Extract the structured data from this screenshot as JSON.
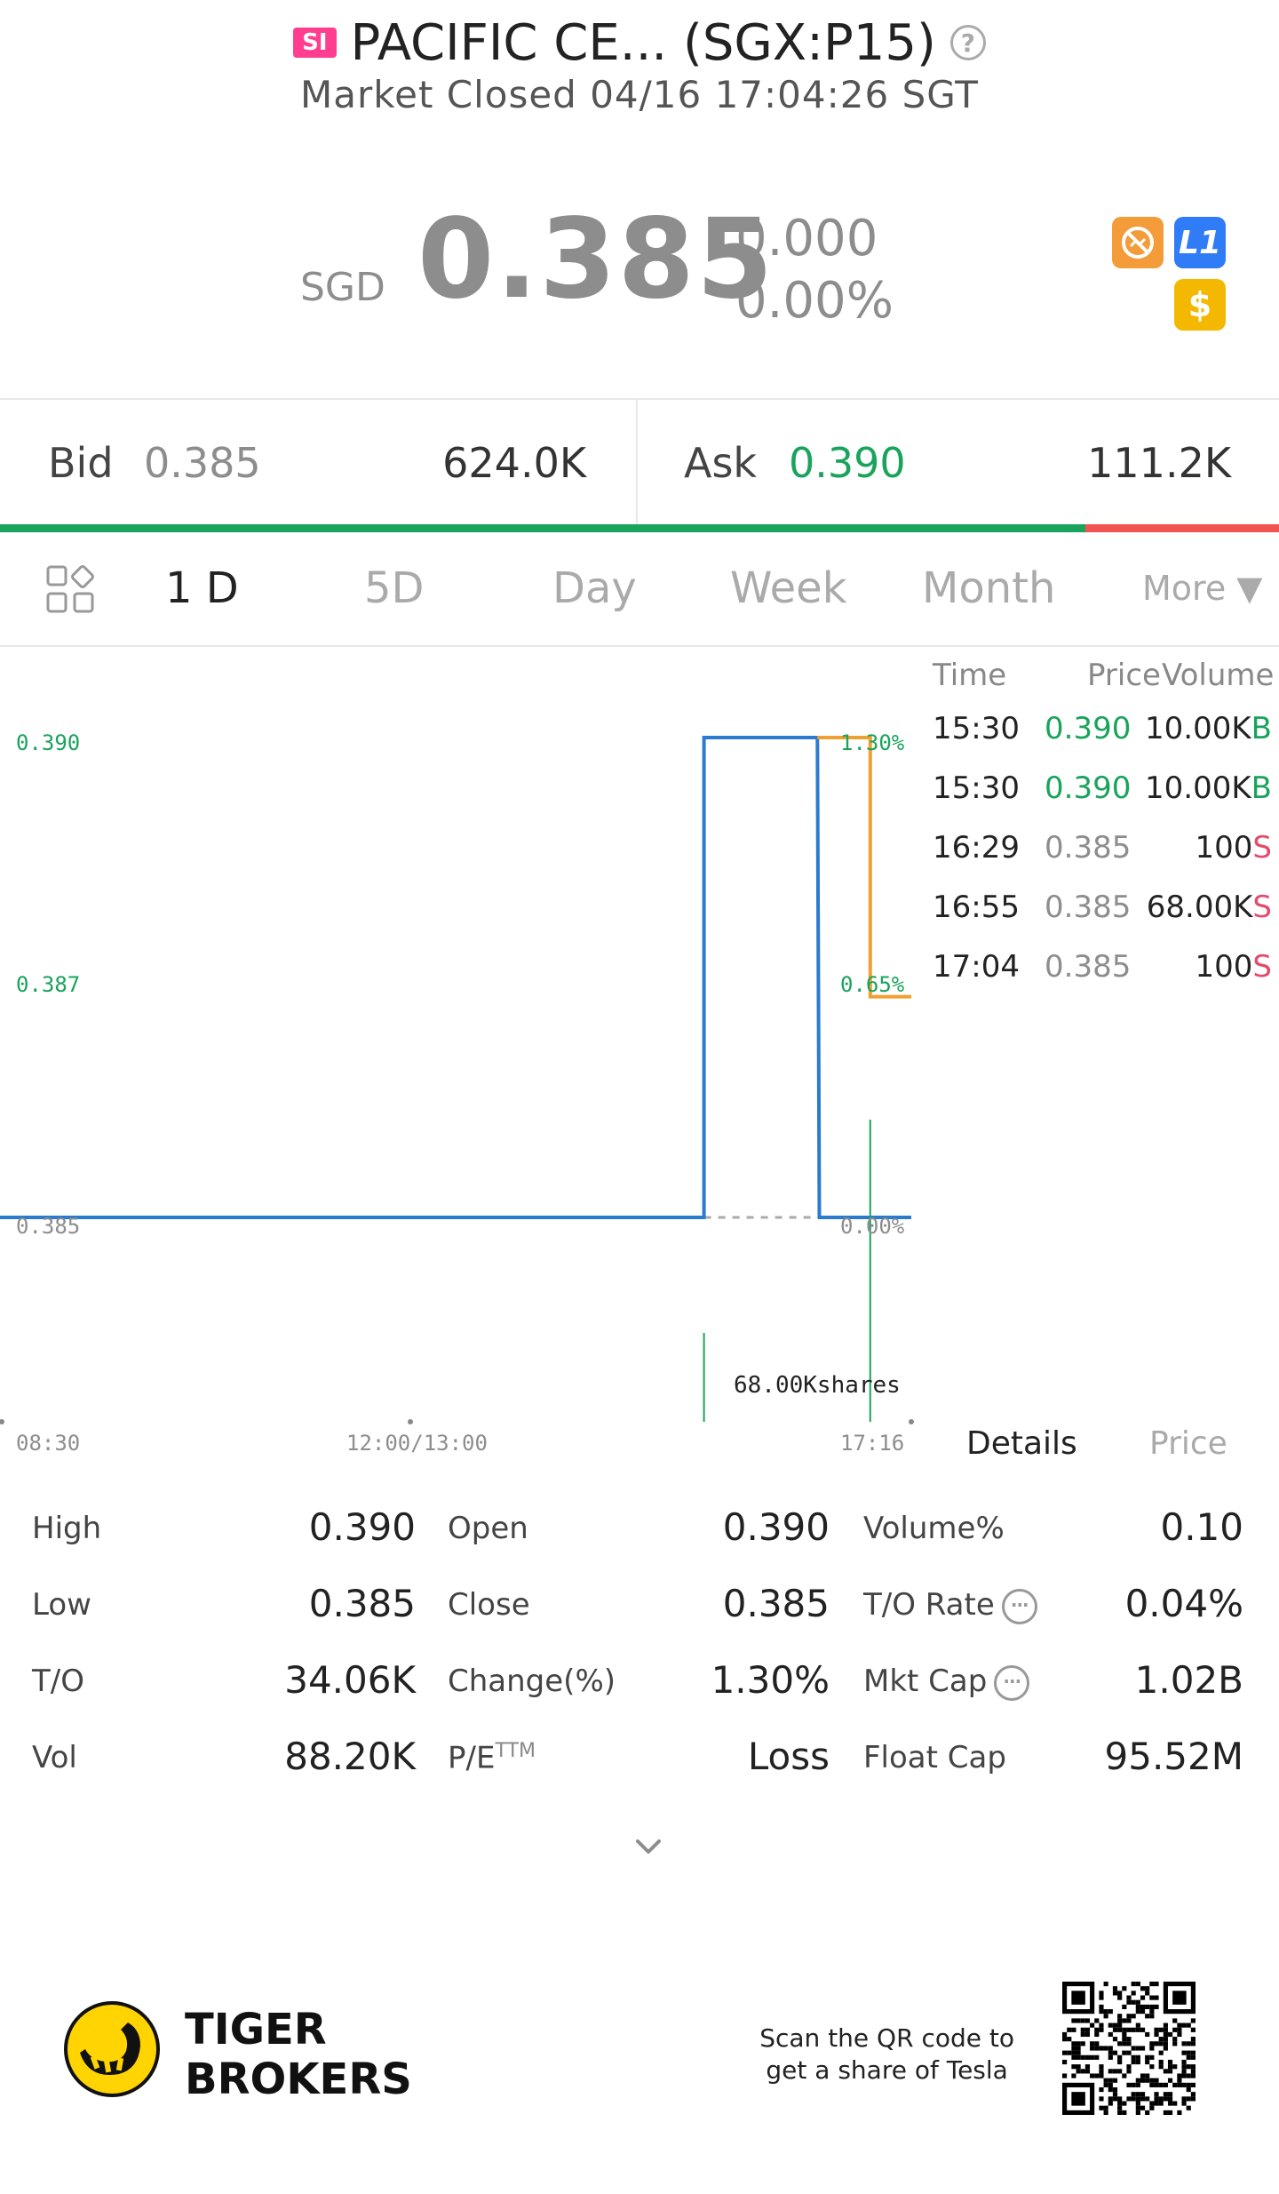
{
  "header": {
    "badge": "SI",
    "title": "PACIFIC CE... (SGX:P15)",
    "status": "Market Closed 04/16 17:04:26 SGT"
  },
  "quote": {
    "currency": "SGD",
    "price": "0.385",
    "change": "0.000",
    "change_pct": "0.00%",
    "icon_names": [
      "no-short-icon",
      "level1-icon",
      "dollar-icon"
    ],
    "l1_label": "L1",
    "dollar_label": "$"
  },
  "bidask": {
    "bid_label": "Bid",
    "bid_price": "0.385",
    "bid_size": "624.0K",
    "ask_label": "Ask",
    "ask_price": "0.390",
    "ask_size": "111.2K",
    "bid_share": 0.849
  },
  "tabs": {
    "items": [
      "1 D",
      "5D",
      "Day",
      "Week",
      "Month"
    ],
    "more": "More ▼",
    "active_index": 0
  },
  "chart_data": {
    "type": "line",
    "y_labels_left": [
      "0.390",
      "0.387",
      "0.385"
    ],
    "y_labels_right": [
      "1.30%",
      "0.65%",
      "0.00%"
    ],
    "x_labels": [
      "08:30",
      "12:00/13:00",
      "17:16"
    ],
    "ylim": [
      0.385,
      0.39
    ],
    "series": [
      {
        "color": "#2a7bd0",
        "points": [
          [
            "08:30",
            0.385
          ],
          [
            "15:30",
            0.385
          ],
          [
            "15:30",
            0.39
          ],
          [
            "16:28",
            0.39
          ],
          [
            "16:29",
            0.385
          ],
          [
            "17:16",
            0.385
          ]
        ]
      },
      {
        "color": "#f0a030",
        "points": [
          [
            "16:28",
            0.39
          ],
          [
            "16:55",
            0.39
          ],
          [
            "16:55",
            0.3873
          ],
          [
            "17:16",
            0.3873
          ]
        ]
      }
    ],
    "volume_annotation": "68.00Kshares",
    "colors": {
      "up": "#1aa35c",
      "neutral": "#8d8d8d",
      "sell": "#e54b6b"
    }
  },
  "ticks": {
    "headers": {
      "time": "Time",
      "price": "Price",
      "volume": "Volume"
    },
    "rows": [
      {
        "time": "15:30",
        "price": "0.390",
        "volume": "10.00K",
        "side": "B",
        "dir": "up"
      },
      {
        "time": "15:30",
        "price": "0.390",
        "volume": "10.00K",
        "side": "B",
        "dir": "up"
      },
      {
        "time": "16:29",
        "price": "0.385",
        "volume": "100",
        "side": "S",
        "dir": "flat"
      },
      {
        "time": "16:55",
        "price": "0.385",
        "volume": "68.00K",
        "side": "S",
        "dir": "flat"
      },
      {
        "time": "17:04",
        "price": "0.385",
        "volume": "100",
        "side": "S",
        "dir": "flat"
      }
    ]
  },
  "details_tabs": {
    "details": "Details",
    "price": "Price"
  },
  "stats": [
    [
      {
        "label": "High",
        "value": "0.390"
      },
      {
        "label": "Open",
        "value": "0.390"
      },
      {
        "label": "Volume%",
        "value": "0.10"
      }
    ],
    [
      {
        "label": "Low",
        "value": "0.385"
      },
      {
        "label": "Close",
        "value": "0.385"
      },
      {
        "label": "T/O Rate",
        "value": "0.04%",
        "info": true
      }
    ],
    [
      {
        "label": "T/O",
        "value": "34.06K"
      },
      {
        "label": "Change(%)",
        "value": "1.30%"
      },
      {
        "label": "Mkt Cap",
        "value": "1.02B",
        "info": true
      }
    ],
    [
      {
        "label": "Vol",
        "value": "88.20K"
      },
      {
        "label": "P/E",
        "sup": "TTM",
        "value": "Loss"
      },
      {
        "label": "Float Cap",
        "value": "95.52M"
      }
    ]
  ],
  "footer": {
    "brand_line1": "TIGER",
    "brand_line2": "BROKERS",
    "scan_line1": "Scan the QR code to",
    "scan_line2": "get a share of Tesla"
  }
}
